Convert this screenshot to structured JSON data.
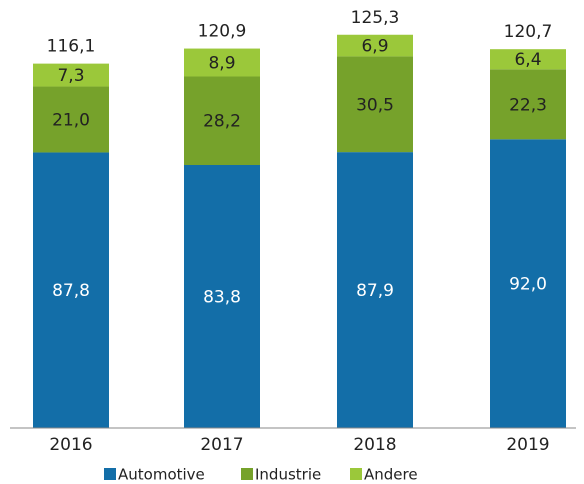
{
  "chart_data": {
    "type": "stacked_bar",
    "categories": [
      "2016",
      "2017",
      "2018",
      "2019"
    ],
    "series": [
      {
        "name": "Automotive",
        "color": "#136ea8",
        "values": [
          87.8,
          83.8,
          87.9,
          92.0
        ],
        "value_labels": [
          "87,8",
          "83,8",
          "87,9",
          "92,0"
        ]
      },
      {
        "name": "Industrie",
        "color": "#76a22b",
        "values": [
          21.0,
          28.2,
          30.5,
          22.3
        ],
        "value_labels": [
          "21,0",
          "28,2",
          "30,5",
          "22,3"
        ]
      },
      {
        "name": "Andere",
        "color": "#9bc83a",
        "values": [
          7.3,
          8.9,
          6.9,
          6.4
        ],
        "value_labels": [
          "7,3",
          "8,9",
          "6,9",
          "6,4"
        ]
      }
    ],
    "totals": [
      116.1,
      120.9,
      125.3,
      120.7
    ],
    "total_labels": [
      "116,1",
      "120,9",
      "125,3",
      "120,7"
    ],
    "ylim": [
      0,
      130
    ]
  }
}
